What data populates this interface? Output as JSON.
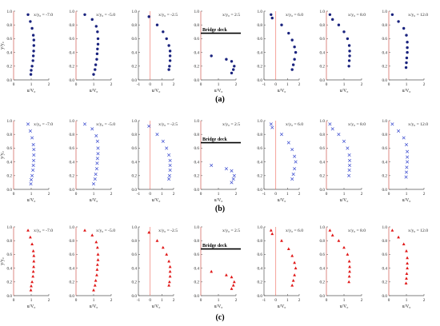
{
  "figure": {
    "panel_rows": [
      {
        "label": "(a)",
        "marker": "circle",
        "color": "#1a237e"
      },
      {
        "label": "(b)",
        "marker": "cross",
        "color": "#3b4ccf"
      },
      {
        "label": "(c)",
        "marker": "triangle",
        "color": "#e01818"
      }
    ],
    "reference_line_color": "#f28b82",
    "bridge_deck_label": "Bridge deck",
    "ylabel": "y/y₀",
    "xlabel": "u/V₀",
    "y_ticks": [
      "0.0",
      "0.2",
      "0.4",
      "0.6",
      "0.8",
      "1.0"
    ],
    "x_tick_sets": {
      "pos": [
        "0",
        "1",
        "2"
      ],
      "neg": [
        "-1",
        "0",
        "1",
        "2"
      ]
    }
  },
  "chart_data": {
    "type": "scatter",
    "panels_per_row": 7,
    "ylim": [
      0,
      1
    ],
    "stations": [
      {
        "label": "x/y₀ = -7.0",
        "xlim": [
          0,
          2
        ],
        "ticks": "pos",
        "deck": false,
        "x": [
          0.82,
          0.95,
          1.05,
          1.12,
          1.15,
          1.15,
          1.14,
          1.12,
          1.1,
          1.05,
          1.0,
          0.98
        ],
        "y": [
          0.95,
          0.85,
          0.75,
          0.65,
          0.58,
          0.5,
          0.42,
          0.35,
          0.28,
          0.2,
          0.14,
          0.08
        ]
      },
      {
        "label": "x/y₀ = -5.0",
        "xlim": [
          0,
          2
        ],
        "ticks": "pos",
        "deck": false,
        "x": [
          0.5,
          0.92,
          1.15,
          1.22,
          1.25,
          1.25,
          1.22,
          1.2,
          1.18,
          1.12,
          1.08,
          1.0
        ],
        "y": [
          0.95,
          0.88,
          0.78,
          0.7,
          0.6,
          0.52,
          0.45,
          0.38,
          0.3,
          0.22,
          0.15,
          0.08
        ]
      },
      {
        "label": "x/y₀ = -2.5",
        "xlim": [
          -1,
          2
        ],
        "ticks": "neg",
        "deck": false,
        "x": [
          -0.1,
          0.6,
          1.1,
          1.4,
          1.6,
          1.7,
          1.7,
          1.7,
          1.65,
          1.6
        ],
        "y": [
          0.92,
          0.8,
          0.7,
          0.6,
          0.5,
          0.42,
          0.35,
          0.28,
          0.2,
          0.15
        ]
      },
      {
        "label": "x/y₀ = 2.5",
        "xlim": [
          0,
          2
        ],
        "ticks": "pos",
        "deck": true,
        "deck_y": 0.68,
        "x": [
          0.6,
          1.45,
          1.75,
          1.9,
          1.85,
          1.75
        ],
        "y": [
          0.35,
          0.3,
          0.27,
          0.2,
          0.15,
          0.1
        ]
      },
      {
        "label": "x/y₀ = 6.0",
        "xlim": [
          -1,
          2
        ],
        "ticks": "neg",
        "deck": false,
        "x": [
          -0.4,
          -0.3,
          0.5,
          1.1,
          1.4,
          1.6,
          1.7,
          1.6,
          1.5,
          1.4
        ],
        "y": [
          0.95,
          0.9,
          0.8,
          0.68,
          0.58,
          0.48,
          0.4,
          0.3,
          0.22,
          0.15
        ]
      },
      {
        "label": "x/y₀ = 8.0",
        "xlim": [
          0,
          2
        ],
        "ticks": "pos",
        "deck": false,
        "x": [
          0.2,
          0.35,
          0.7,
          1.0,
          1.2,
          1.3,
          1.32,
          1.32,
          1.3,
          1.28
        ],
        "y": [
          0.95,
          0.88,
          0.8,
          0.7,
          0.6,
          0.5,
          0.42,
          0.35,
          0.28,
          0.2
        ]
      },
      {
        "label": "x/y₀ = 12.0",
        "xlim": [
          0,
          2
        ],
        "ticks": "pos",
        "deck": false,
        "x": [
          0.2,
          0.55,
          0.85,
          1.0,
          1.05,
          1.05,
          1.05,
          1.02,
          1.0,
          0.98
        ],
        "y": [
          0.95,
          0.85,
          0.75,
          0.65,
          0.55,
          0.47,
          0.4,
          0.32,
          0.25,
          0.18
        ]
      }
    ]
  }
}
